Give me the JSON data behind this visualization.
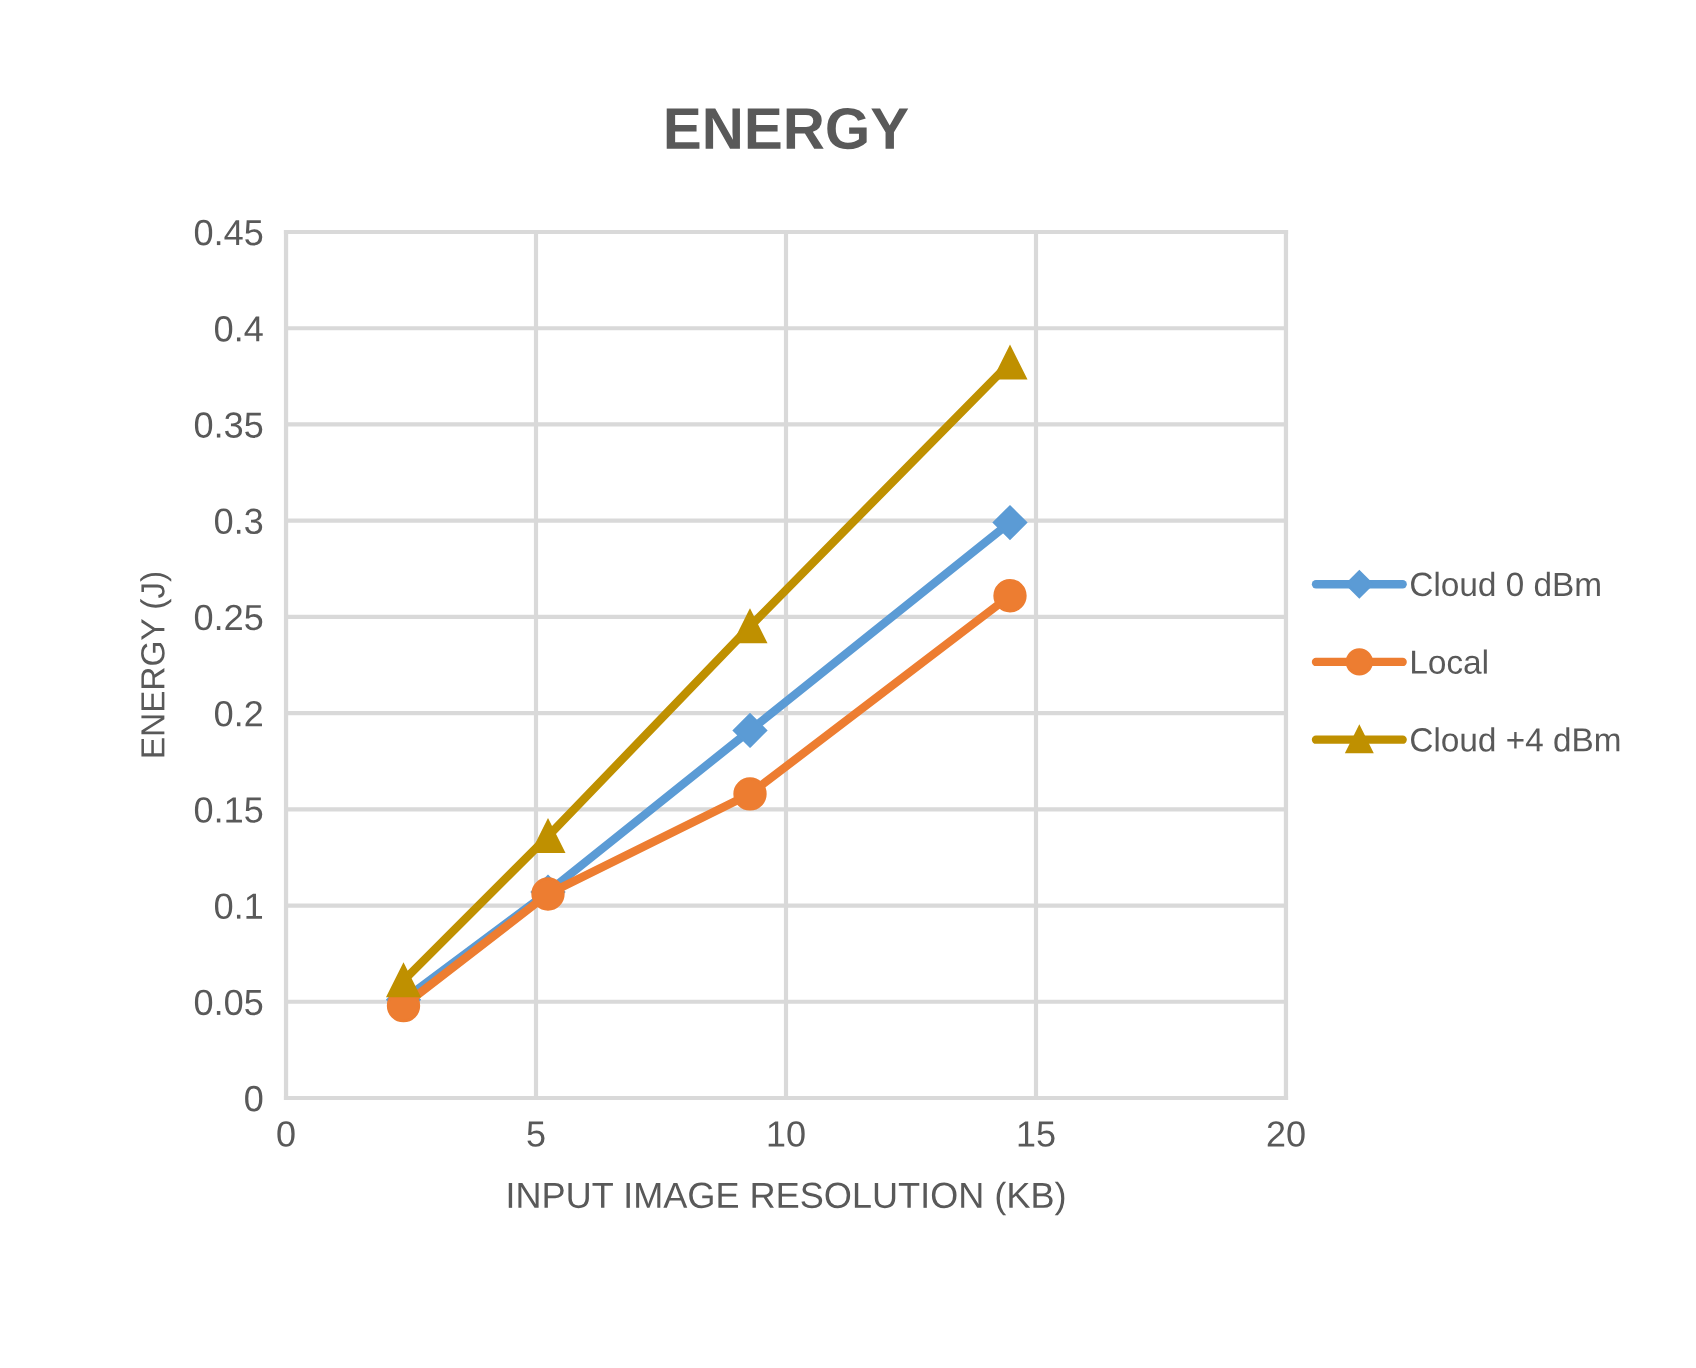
{
  "chart_data": {
    "type": "line",
    "title": "ENERGY",
    "xlabel": "INPUT IMAGE RESOLUTION (KB)",
    "ylabel": "ENERGY (J)",
    "xlim": [
      0,
      20
    ],
    "xticks": [
      0,
      5,
      10,
      15,
      20
    ],
    "ylim": [
      0,
      0.45
    ],
    "yticks": [
      0,
      0.05,
      0.1,
      0.15,
      0.2,
      0.25,
      0.3,
      0.35,
      0.4,
      0.45
    ],
    "grid": true,
    "legend": "right",
    "line_style": "solid",
    "series": [
      {
        "name": "Cloud 0 dBm",
        "color": "#5b9bd5",
        "marker": "diamond",
        "x": [
          2.35,
          5.24,
          9.28,
          14.48
        ],
        "values": [
          0.051,
          0.107,
          0.191,
          0.299
        ]
      },
      {
        "name": "Local",
        "color": "#ed7d31",
        "marker": "circle",
        "x": [
          2.35,
          5.24,
          9.28,
          14.48
        ],
        "values": [
          0.048,
          0.106,
          0.158,
          0.261
        ]
      },
      {
        "name": "Cloud +4 dBm",
        "color": "#bf9000",
        "marker": "triangle",
        "x": [
          2.35,
          5.24,
          9.28,
          14.48
        ],
        "values": [
          0.061,
          0.136,
          0.245,
          0.382
        ]
      }
    ]
  }
}
